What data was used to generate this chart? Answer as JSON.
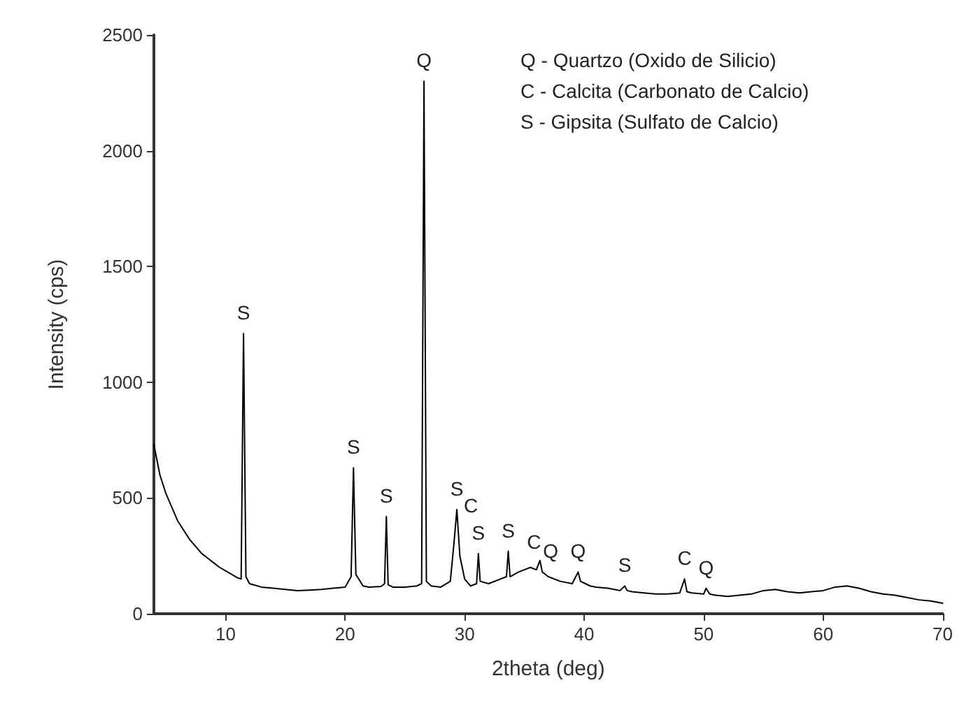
{
  "chart_data": {
    "type": "line",
    "xlabel": "2theta (deg)",
    "ylabel": "Intensity (cps)",
    "xlim": [
      4,
      70
    ],
    "xticks": [
      10,
      20,
      30,
      40,
      50,
      60,
      70
    ],
    "ylim": [
      0,
      2500
    ],
    "yticks": [
      0,
      500,
      1000,
      1500,
      2000,
      2500
    ],
    "grid": false,
    "marker": "none",
    "line_style": "solid",
    "x": [
      4,
      4.5,
      5,
      5.5,
      6,
      6.5,
      7,
      7.5,
      8,
      8.5,
      9,
      9.5,
      10,
      10.5,
      11,
      11.3,
      11.5,
      11.7,
      12,
      13,
      14,
      15,
      16,
      17,
      18,
      19,
      20,
      20.5,
      20.7,
      20.9,
      21.5,
      22,
      23,
      23.3,
      23.45,
      23.6,
      24,
      25,
      26,
      26.4,
      26.6,
      26.8,
      27.2,
      28,
      28.8,
      29.1,
      29.35,
      29.6,
      30,
      30.5,
      31,
      31.15,
      31.3,
      32,
      33,
      33.5,
      33.65,
      33.8,
      34.5,
      35,
      35.5,
      36,
      36.3,
      36.5,
      37,
      38,
      39,
      39.5,
      39.7,
      40.5,
      41,
      42,
      43,
      43.4,
      43.6,
      44,
      45,
      46,
      47,
      48,
      48.4,
      48.6,
      49,
      50,
      50.2,
      50.5,
      51,
      52,
      53,
      54,
      55,
      56,
      57,
      58,
      59,
      60,
      61,
      62,
      63,
      64,
      65,
      66,
      67,
      68,
      69,
      70
    ],
    "series": [
      {
        "color": "#000000",
        "values": [
          730,
          600,
          520,
          460,
          400,
          360,
          320,
          290,
          260,
          240,
          220,
          200,
          185,
          170,
          155,
          150,
          1210,
          160,
          130,
          115,
          110,
          105,
          100,
          102,
          105,
          110,
          115,
          160,
          630,
          170,
          120,
          115,
          118,
          130,
          420,
          125,
          115,
          115,
          120,
          130,
          2300,
          140,
          120,
          115,
          140,
          300,
          450,
          250,
          150,
          120,
          130,
          260,
          140,
          130,
          150,
          160,
          270,
          160,
          180,
          190,
          200,
          190,
          230,
          180,
          160,
          140,
          130,
          180,
          140,
          120,
          115,
          110,
          100,
          120,
          100,
          95,
          90,
          85,
          85,
          90,
          150,
          95,
          90,
          85,
          110,
          85,
          80,
          75,
          80,
          85,
          100,
          105,
          95,
          90,
          95,
          100,
          115,
          120,
          110,
          95,
          85,
          80,
          70,
          60,
          55,
          45
        ]
      }
    ],
    "annotations": [
      "Q - Quartzo (Oxido de Silicio)",
      "C - Calcita (Carbonato de Calcio)",
      "S - Gipsita (Sulfato de Calcio)",
      {
        "text": "S",
        "x": 11.5,
        "y": 1210
      },
      {
        "text": "S",
        "x": 20.7,
        "y": 630
      },
      {
        "text": "S",
        "x": 23.45,
        "y": 420
      },
      {
        "text": "Q",
        "x": 26.6,
        "y": 2300
      },
      {
        "text": "S",
        "x": 29.35,
        "y": 450
      },
      {
        "text": "C",
        "x": 29.35,
        "y": 450
      },
      {
        "text": "S",
        "x": 31.15,
        "y": 260
      },
      {
        "text": "S",
        "x": 33.65,
        "y": 270
      },
      {
        "text": "C",
        "x": 35.8,
        "y": 220
      },
      {
        "text": "Q",
        "x": 37.2,
        "y": 180
      },
      {
        "text": "Q",
        "x": 39.5,
        "y": 180
      },
      {
        "text": "S",
        "x": 43.4,
        "y": 120
      },
      {
        "text": "C",
        "x": 48.4,
        "y": 150
      },
      {
        "text": "Q",
        "x": 50.2,
        "y": 110
      }
    ]
  }
}
